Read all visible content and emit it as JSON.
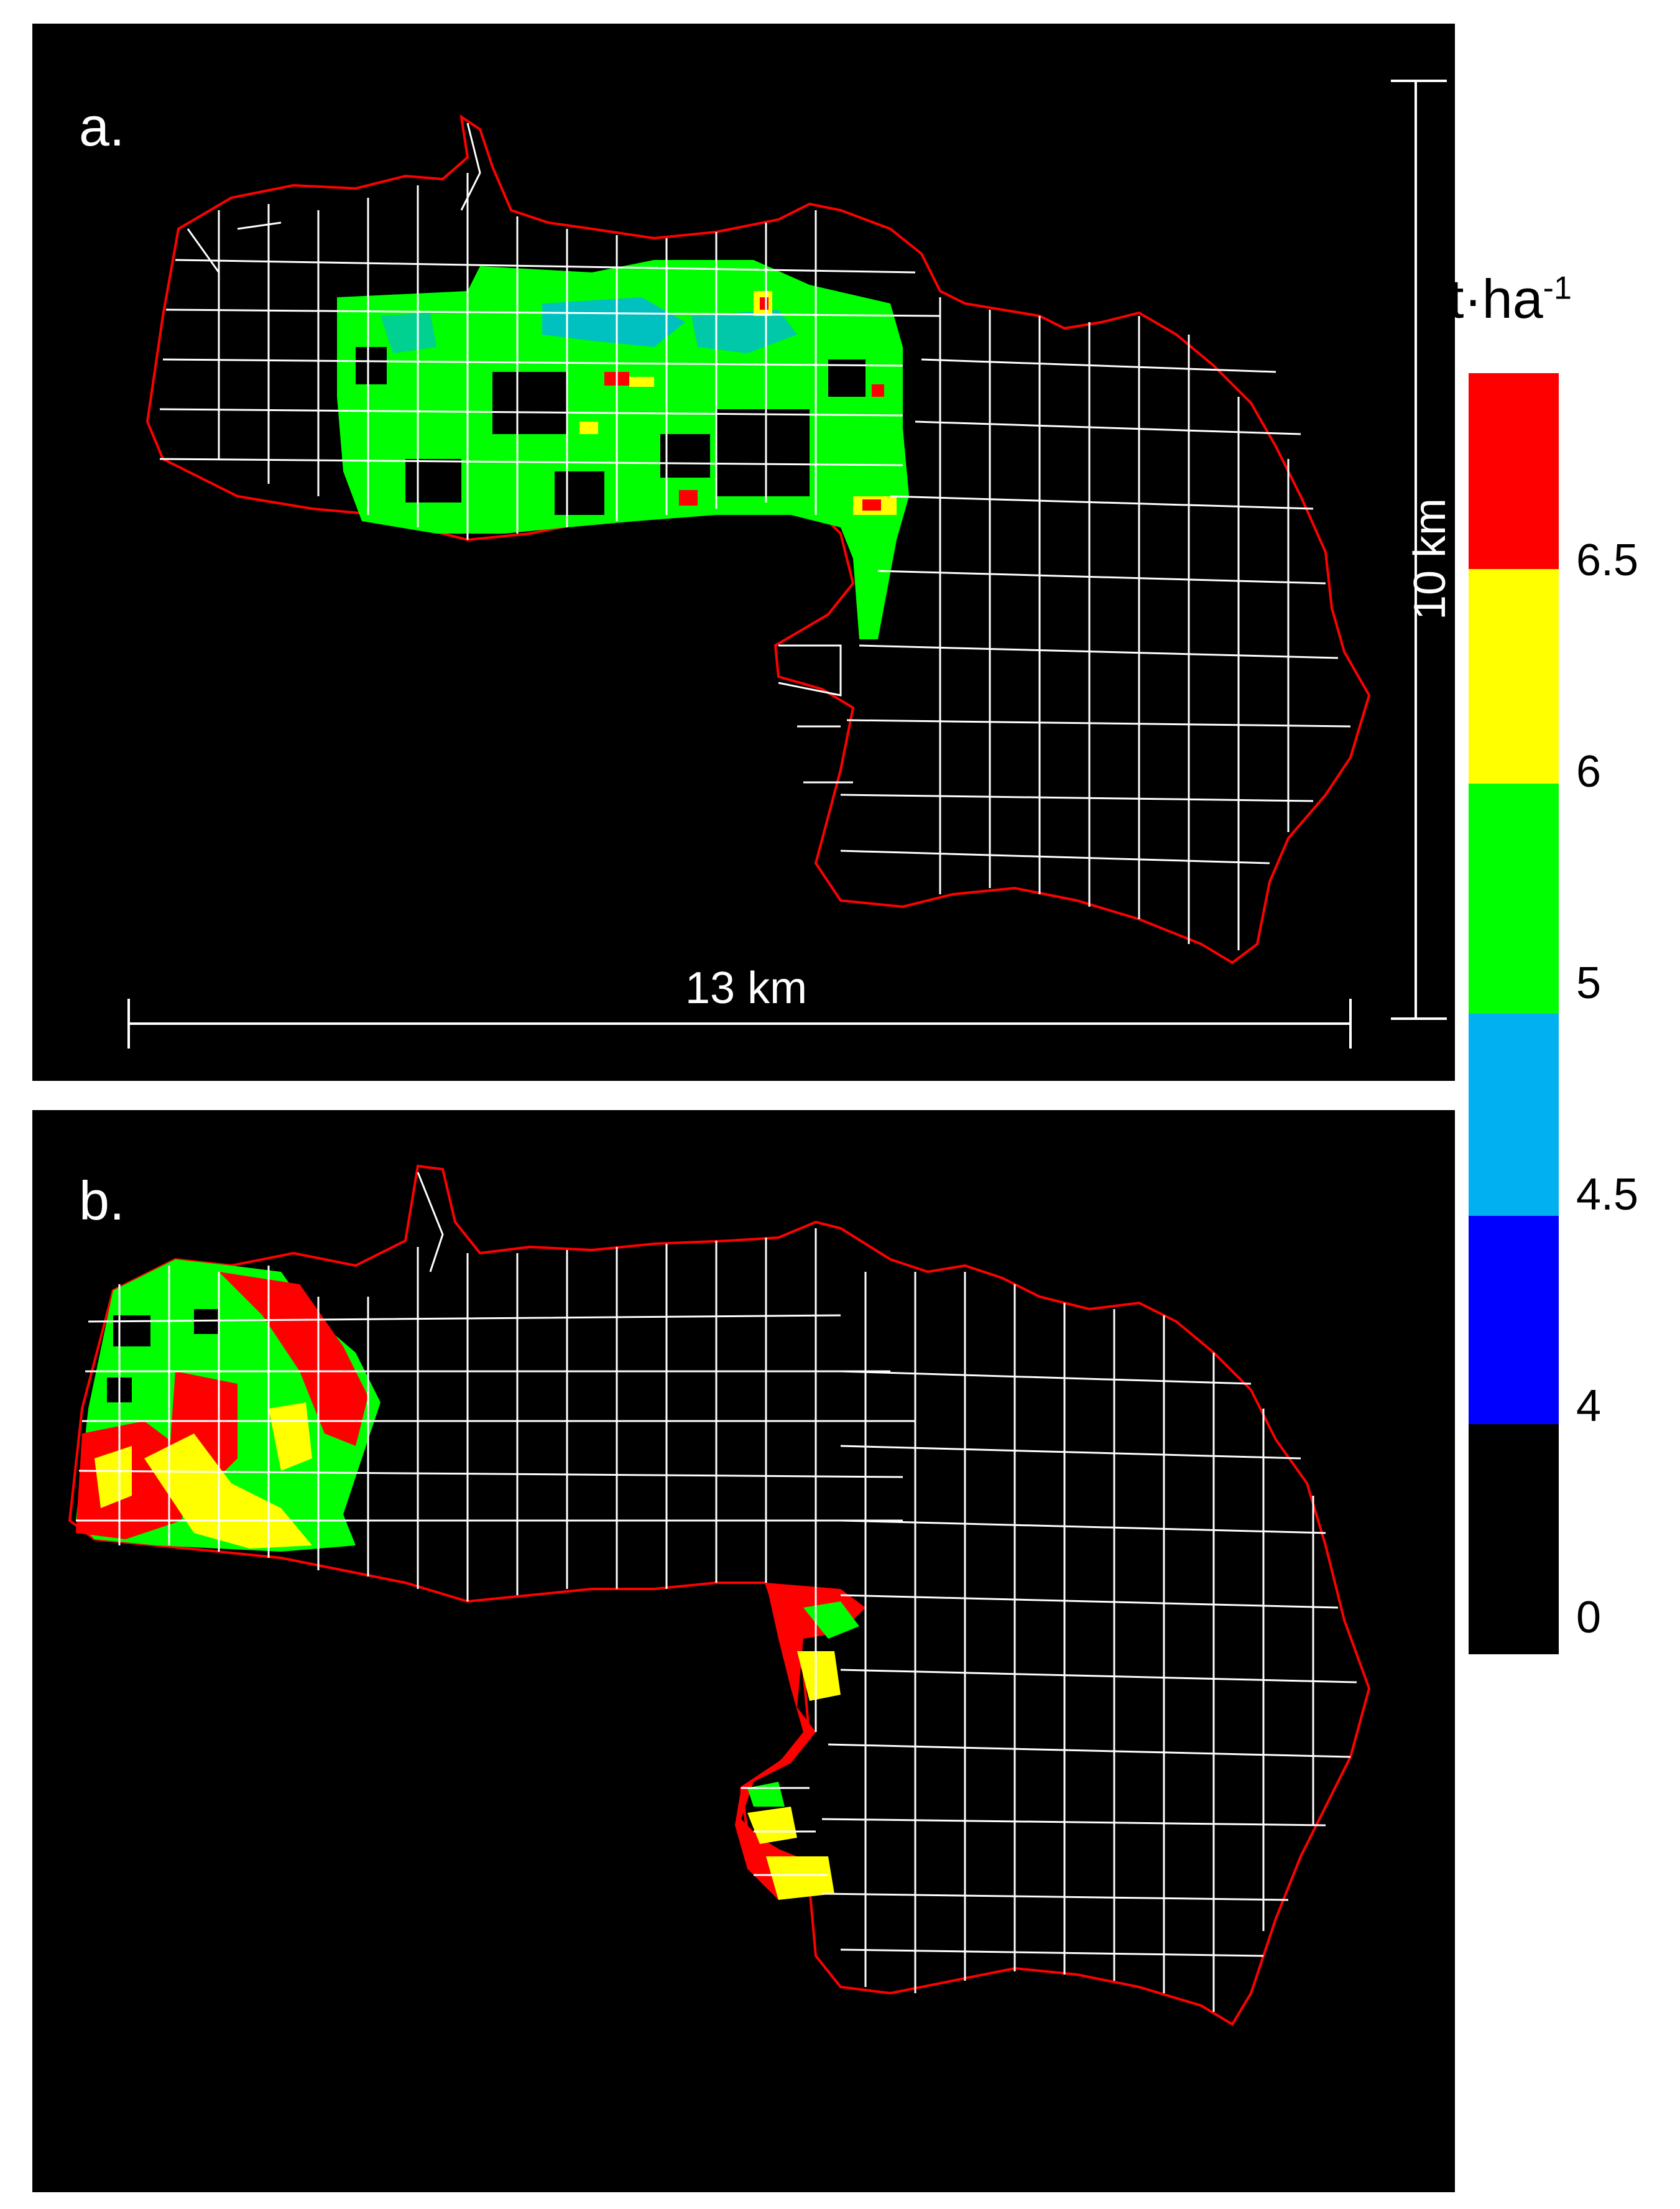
{
  "panels": {
    "a": {
      "label": "a."
    },
    "b": {
      "label": "b."
    }
  },
  "scale_bars": {
    "horizontal": "13 km",
    "vertical": "10 km"
  },
  "legend": {
    "unit_base": "t·ha",
    "unit_exponent": "-1",
    "ticks": [
      "6.5",
      "6",
      "5",
      "4.5",
      "4",
      "0"
    ],
    "classes": [
      {
        "color": "#ff0000"
      },
      {
        "color": "#ffff00"
      },
      {
        "color": "#00ff00"
      },
      {
        "color": "#00b0f0"
      },
      {
        "color": "#0000ff"
      },
      {
        "color": "#000000"
      }
    ]
  },
  "colors": {
    "boundary": "#ff0000",
    "parcel_lines": "#ffffff",
    "background": "#000000"
  }
}
